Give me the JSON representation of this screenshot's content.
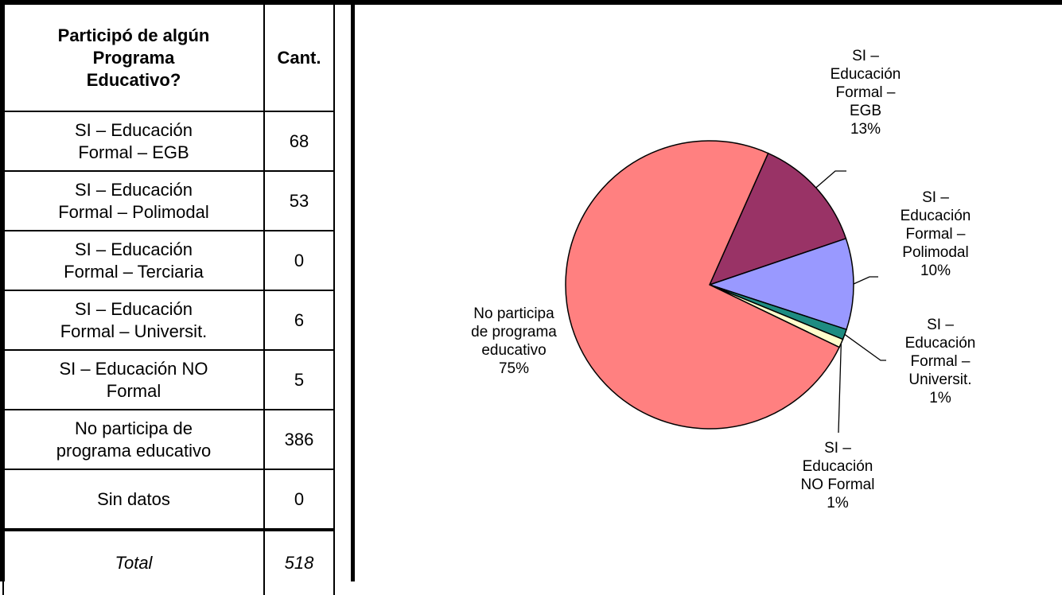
{
  "table": {
    "header": [
      "Participó de algún Programa Educativo?",
      "Cant."
    ],
    "header_lines": [
      "Participó de algún",
      "Programa",
      "Educativo?"
    ],
    "rows": [
      {
        "label_lines": [
          "SI – Educación",
          "Formal – EGB"
        ],
        "value": "68"
      },
      {
        "label_lines": [
          "SI – Educación",
          "Formal – Polimodal"
        ],
        "value": "53"
      },
      {
        "label_lines": [
          "SI – Educación",
          "Formal – Terciaria"
        ],
        "value": "0"
      },
      {
        "label_lines": [
          "SI – Educación",
          "Formal – Universit."
        ],
        "value": "6"
      },
      {
        "label_lines": [
          "SI – Educación NO",
          "Formal"
        ],
        "value": "5"
      },
      {
        "label_lines": [
          "No participa de",
          "programa educativo"
        ],
        "value": "386"
      },
      {
        "label_lines": [
          "Sin datos"
        ],
        "value": "0"
      }
    ],
    "total": {
      "label": "Total",
      "value": "518"
    }
  },
  "chart_data": {
    "type": "pie",
    "slices": [
      {
        "name": "SI – Educación Formal – EGB",
        "value": 68,
        "percent": "13%",
        "color": "#993366",
        "label_lines": [
          "SI –",
          "Educación",
          "Formal –",
          "EGB",
          "13%"
        ]
      },
      {
        "name": "SI – Educación Formal – Polimodal",
        "value": 53,
        "percent": "10%",
        "color": "#9999FF",
        "label_lines": [
          "SI –",
          "Educación",
          "Formal –",
          "Polimodal",
          "10%"
        ]
      },
      {
        "name": "SI – Educación Formal – Universit.",
        "value": 6,
        "percent": "1%",
        "color": "#1E8C82",
        "label_lines": [
          "SI –",
          "Educación",
          "Formal –",
          "Universit.",
          "1%"
        ]
      },
      {
        "name": "SI – Educación NO Formal",
        "value": 5,
        "percent": "1%",
        "color": "#FFFFCC",
        "label_lines": [
          "SI –",
          "Educación",
          "NO Formal",
          "1%"
        ]
      },
      {
        "name": "No participa de programa educativo",
        "value": 386,
        "percent": "75%",
        "color": "#FF8080",
        "label_lines": [
          "No participa",
          "de programa",
          "educativo",
          "75%"
        ]
      }
    ]
  }
}
